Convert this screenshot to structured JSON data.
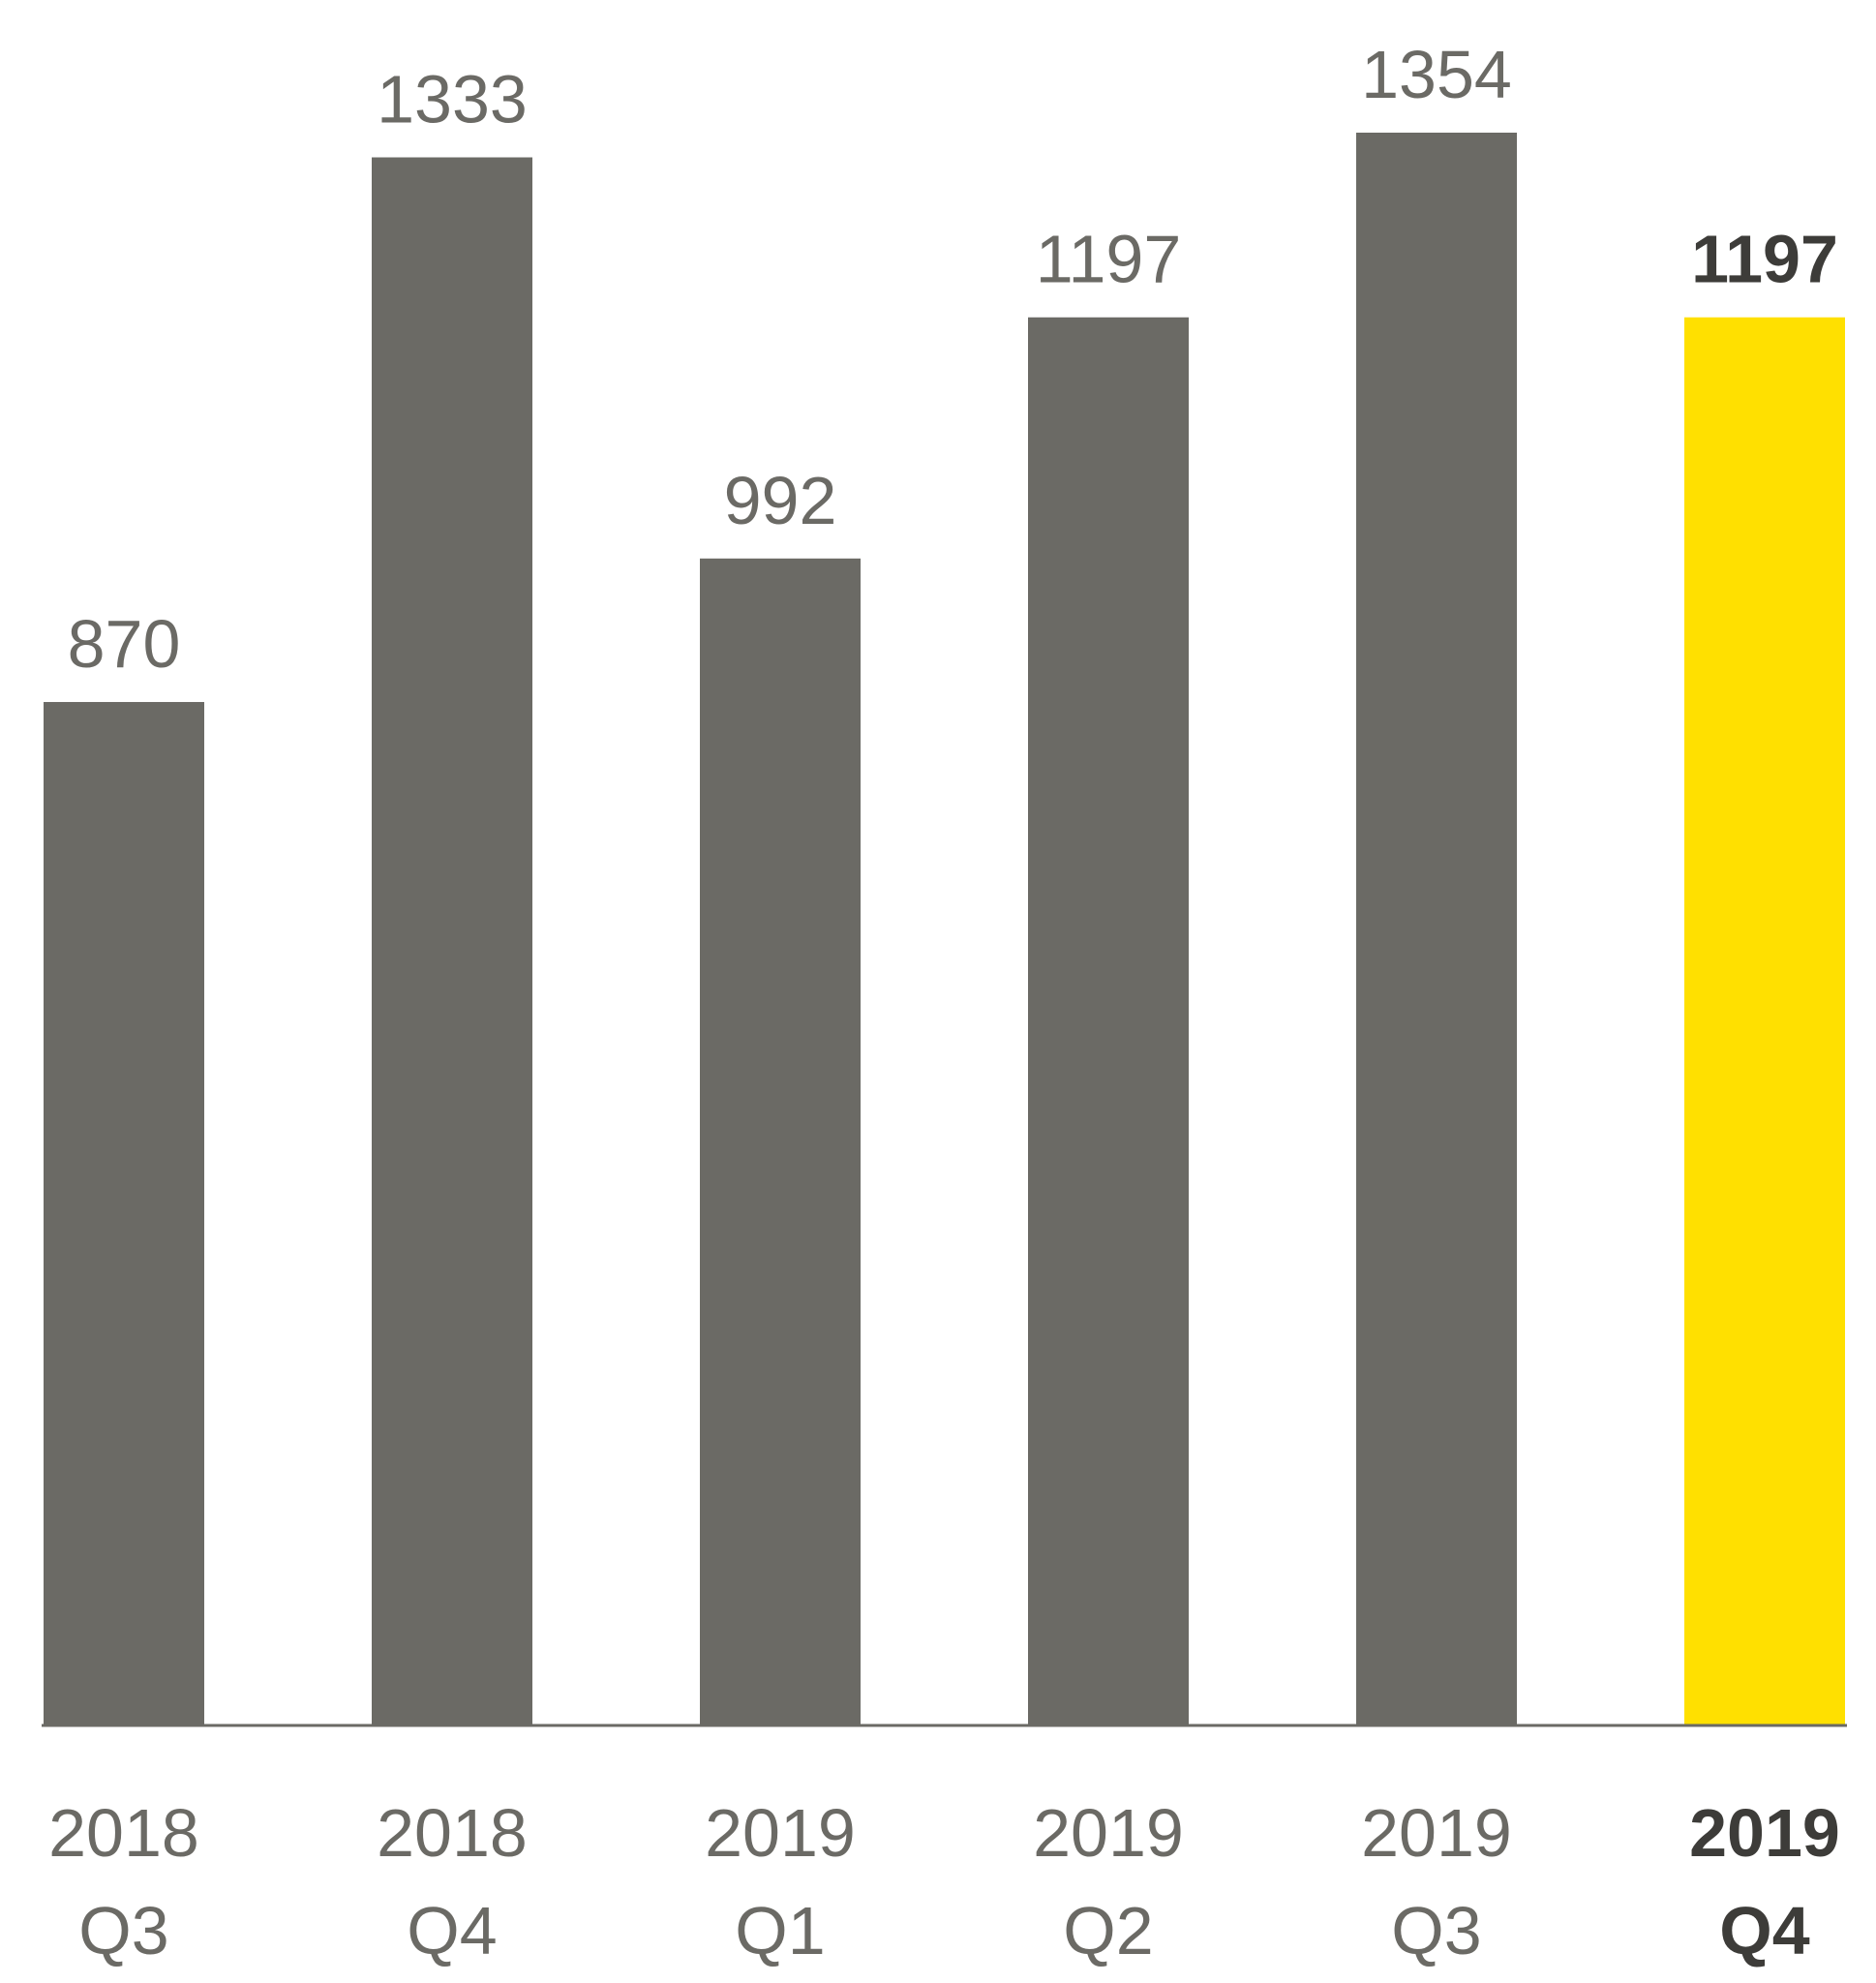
{
  "chart_data": {
    "type": "bar",
    "categories": [
      {
        "year": "2018",
        "quarter": "Q3"
      },
      {
        "year": "2018",
        "quarter": "Q4"
      },
      {
        "year": "2019",
        "quarter": "Q1"
      },
      {
        "year": "2019",
        "quarter": "Q2"
      },
      {
        "year": "2019",
        "quarter": "Q3"
      },
      {
        "year": "2019",
        "quarter": "Q4"
      }
    ],
    "values": [
      870,
      1333,
      992,
      1197,
      1354,
      1197
    ],
    "value_labels": [
      "870",
      "1333",
      "992",
      "1197",
      "1354",
      "1197"
    ],
    "highlight_index": 5,
    "ylim": [
      0,
      1354
    ],
    "grid": false,
    "legend": "none"
  },
  "colors": {
    "bar": "#6b6a65",
    "highlight_bar": "#ffe000",
    "label_text": "#6b6a65",
    "highlight_text": "#3d3c39",
    "axis": "#6b6a65",
    "background": "#ffffff"
  }
}
